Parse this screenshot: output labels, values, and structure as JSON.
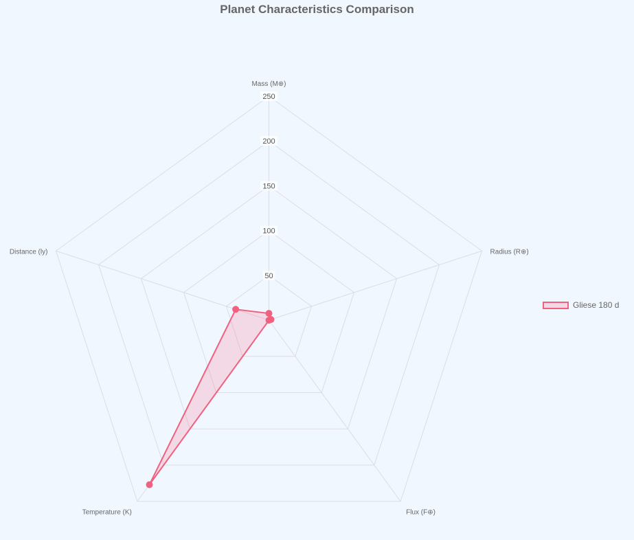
{
  "chart_data": {
    "type": "radar",
    "title": "Planet Characteristics Comparison",
    "axes": [
      "Mass (M⊕)",
      "Radius (R⊕)",
      "Flux (F⊕)",
      "Temperature (K)",
      "Distance (ly)"
    ],
    "ticks": [
      "50",
      "100",
      "150",
      "200",
      "250"
    ],
    "rlim": [
      0,
      250
    ],
    "grid": true,
    "legend_position": "right",
    "series": [
      {
        "name": "Gliese 180 d",
        "values": [
          7.56,
          2.41,
          0.13,
          227,
          39
        ],
        "color": "#f0607f"
      }
    ]
  }
}
